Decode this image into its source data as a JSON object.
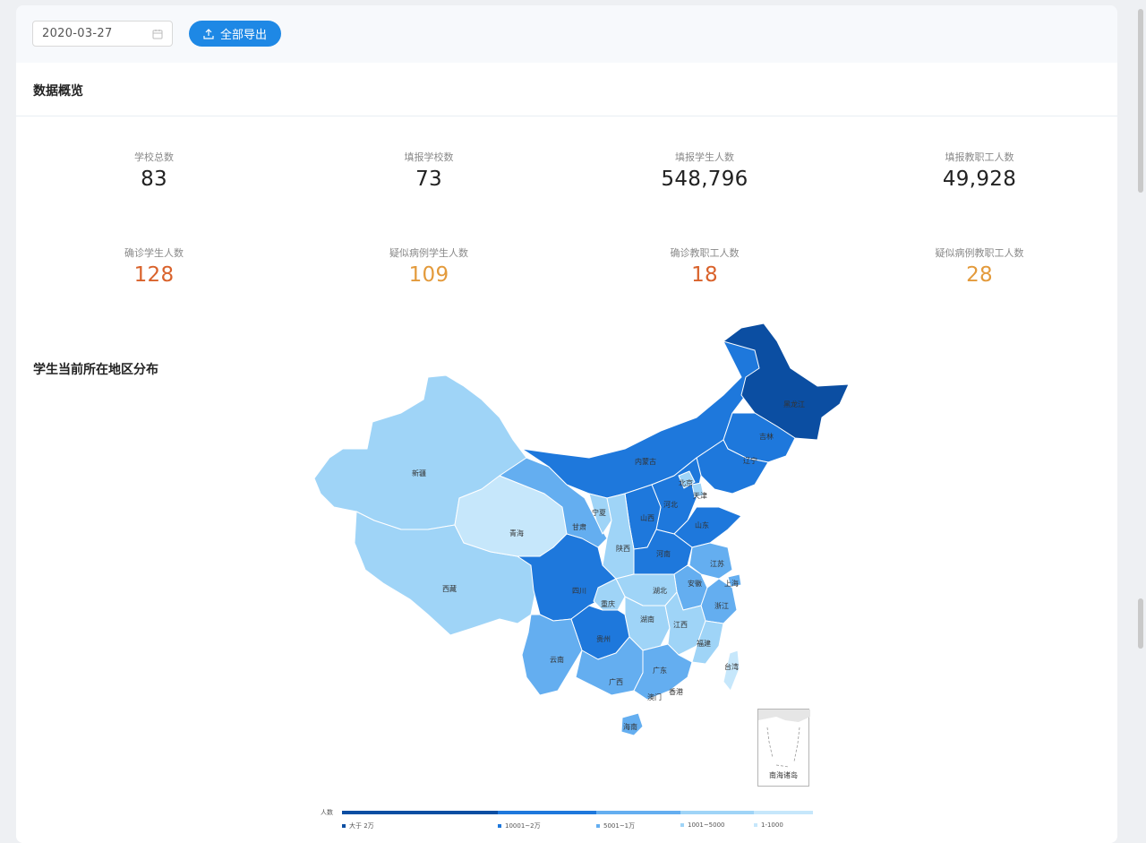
{
  "toolbar": {
    "date_value": "2020-03-27",
    "export_label": "全部导出"
  },
  "overview": {
    "title": "数据概览",
    "stats": [
      {
        "label": "学校总数",
        "value": "83"
      },
      {
        "label": "填报学校数",
        "value": "73"
      },
      {
        "label": "填报学生人数",
        "value": "548,796"
      },
      {
        "label": "填报教职工人数",
        "value": "49,928"
      },
      {
        "label": "确诊学生人数",
        "value": "128"
      },
      {
        "label": "疑似病例学生人数",
        "value": "109"
      },
      {
        "label": "确诊教职工人数",
        "value": "18"
      },
      {
        "label": "疑似病例教职工人数",
        "value": "28"
      }
    ]
  },
  "map": {
    "title": "学生当前所在地区分布",
    "inset_label": "南海诸岛",
    "legend": {
      "title": "人数",
      "items": [
        {
          "label": "大于 2万",
          "color": "#0b4ea2"
        },
        {
          "label": "10001~2万",
          "color": "#1e78dc"
        },
        {
          "label": "5001~1万",
          "color": "#64aef0"
        },
        {
          "label": "1001~5000",
          "color": "#9fd4f7"
        },
        {
          "label": "1-1000",
          "color": "#c6e7fb"
        }
      ]
    },
    "provinces": {
      "xinjiang": "新疆",
      "xizang": "西藏",
      "qinghai": "青海",
      "gansu": "甘肃",
      "neimenggu": "内蒙古",
      "heilongjiang": "黑龙江",
      "jilin": "吉林",
      "liaoning": "辽宁",
      "beijing": "北京",
      "tianjin": "天津",
      "hebei": "河北",
      "shanxi": "山西",
      "shandong": "山东",
      "ningxia": "宁夏",
      "shaanxi": "陕西",
      "henan": "河南",
      "jiangsu": "江苏",
      "anhui": "安徽",
      "shanghai": "上海",
      "zhejiang": "浙江",
      "hubei": "湖北",
      "sichuan": "四川",
      "chongqing": "重庆",
      "hunan": "湖南",
      "jiangxi": "江西",
      "guizhou": "贵州",
      "fujian": "福建",
      "yunnan": "云南",
      "guangxi": "广西",
      "guangdong": "广东",
      "taiwan": "台湾",
      "hongkong": "香港",
      "macau": "澳门",
      "hainan": "海南"
    }
  }
}
